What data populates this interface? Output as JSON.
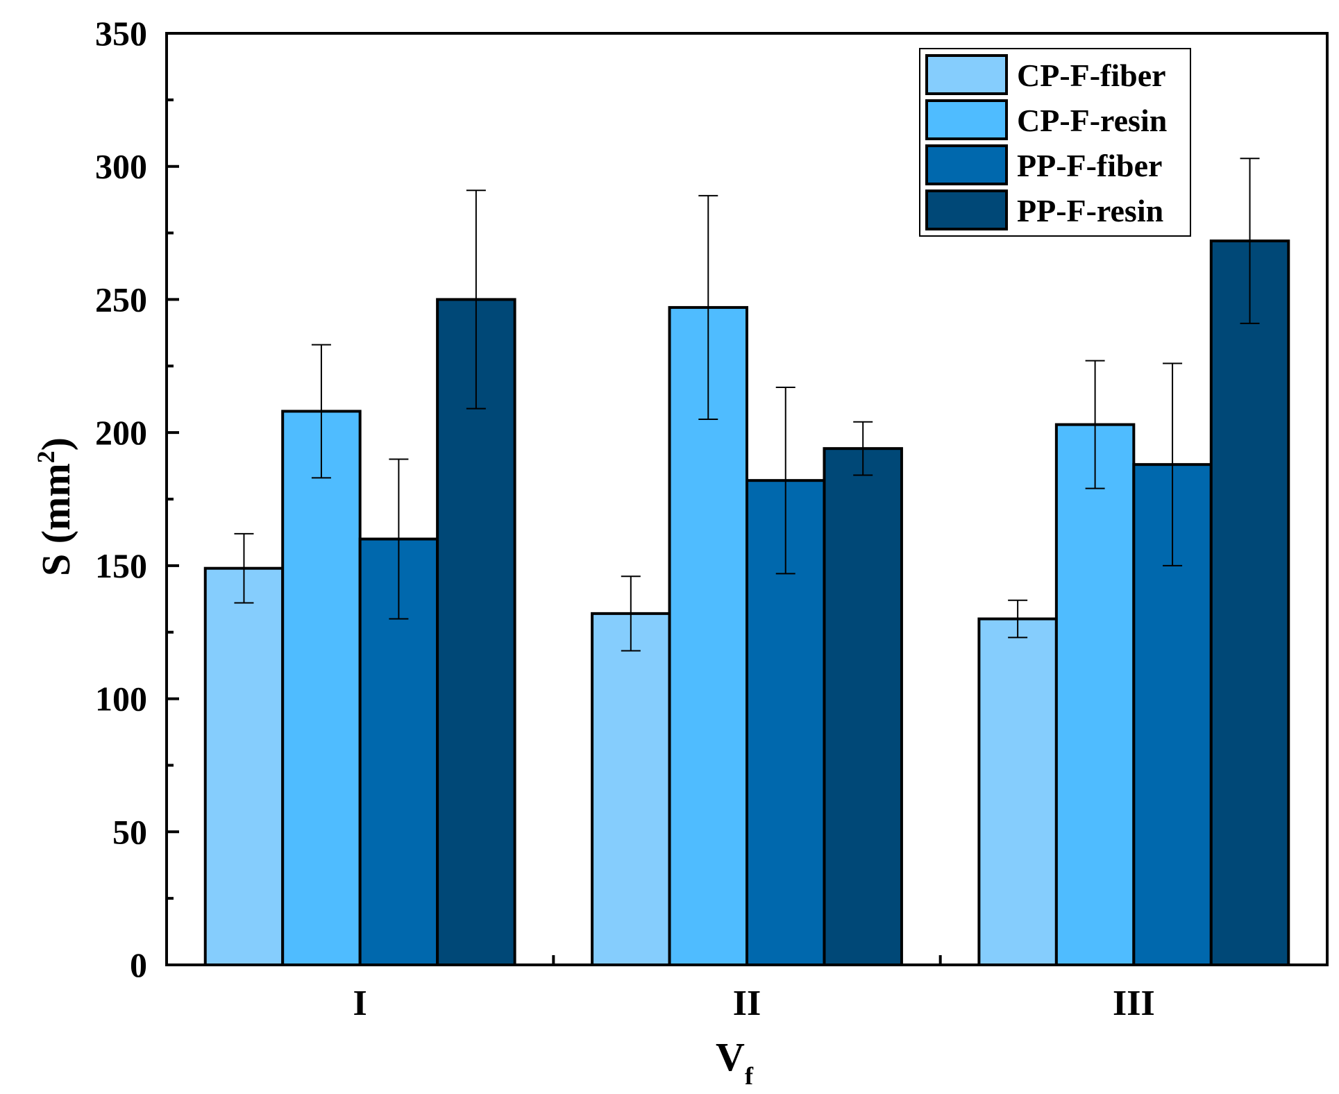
{
  "chart_data": {
    "type": "bar",
    "title": "",
    "xlabel": "V",
    "xlabel_subscript": "f",
    "ylabel": "S (mm",
    "ylabel_superscript": "2",
    "ylabel_suffix": ")",
    "ylim": [
      0,
      350
    ],
    "yticks": [
      0,
      50,
      100,
      150,
      200,
      250,
      300,
      350
    ],
    "ytick_labels": [
      "0",
      "50",
      "100",
      "150",
      "200",
      "250",
      "300",
      "350"
    ],
    "categories": [
      "I",
      "II",
      "III"
    ],
    "legend_position": "top-right",
    "series": [
      {
        "name": "CP-F-fiber",
        "color": "#85cdfd",
        "values": [
          149,
          132,
          130
        ],
        "errors": [
          13,
          14,
          7
        ]
      },
      {
        "name": "CP-F-resin",
        "color": "#4fbcff",
        "values": [
          208,
          247,
          203
        ],
        "errors": [
          25,
          42,
          24
        ]
      },
      {
        "name": "PP-F-fiber",
        "color": "#0068ad",
        "values": [
          160,
          182,
          188
        ],
        "errors": [
          30,
          35,
          38
        ]
      },
      {
        "name": "PP-F-resin",
        "color": "#004877",
        "values": [
          250,
          194,
          272
        ],
        "errors": [
          41,
          10,
          31
        ]
      }
    ]
  }
}
